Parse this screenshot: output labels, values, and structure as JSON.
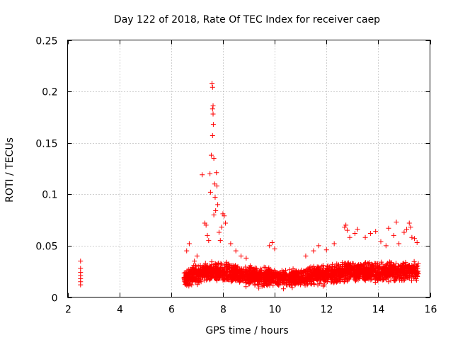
{
  "chart_data": {
    "type": "scatter",
    "title": "Day 122 of 2018, Rate Of TEC Index for receiver caep",
    "xlabel": "GPS time / hours",
    "ylabel": "ROTI / TECUs",
    "xlim": [
      2,
      16
    ],
    "ylim": [
      0,
      0.25
    ],
    "x_ticks": [
      2,
      4,
      6,
      8,
      10,
      12,
      14,
      16
    ],
    "y_ticks": [
      0,
      0.05,
      0.1,
      0.15,
      0.2,
      0.25
    ],
    "x_tick_labels": [
      "2",
      "4",
      "6",
      "8",
      "10",
      "12",
      "14",
      "16"
    ],
    "y_tick_labels": [
      "0",
      "0.05",
      "0.1",
      "0.15",
      "0.2",
      "0.25"
    ],
    "grid": true,
    "marker": "+",
    "color": "#ff0000",
    "series": [
      {
        "name": "ROTI",
        "points": [
          [
            2.5,
            0.012
          ],
          [
            2.5,
            0.015
          ],
          [
            2.5,
            0.018
          ],
          [
            2.5,
            0.021
          ],
          [
            2.5,
            0.024
          ],
          [
            2.5,
            0.028
          ],
          [
            2.5,
            0.035
          ],
          [
            6.6,
            0.045
          ],
          [
            6.7,
            0.052
          ],
          [
            6.9,
            0.035
          ],
          [
            7.0,
            0.04
          ],
          [
            7.2,
            0.119
          ],
          [
            7.3,
            0.072
          ],
          [
            7.35,
            0.07
          ],
          [
            7.4,
            0.06
          ],
          [
            7.45,
            0.055
          ],
          [
            7.5,
            0.12
          ],
          [
            7.52,
            0.102
          ],
          [
            7.55,
            0.138
          ],
          [
            7.58,
            0.208
          ],
          [
            7.6,
            0.204
          ],
          [
            7.62,
            0.186
          ],
          [
            7.6,
            0.183
          ],
          [
            7.62,
            0.178
          ],
          [
            7.63,
            0.168
          ],
          [
            7.6,
            0.157
          ],
          [
            7.65,
            0.135
          ],
          [
            7.68,
            0.11
          ],
          [
            7.7,
            0.097
          ],
          [
            7.72,
            0.084
          ],
          [
            7.75,
            0.121
          ],
          [
            7.77,
            0.108
          ],
          [
            7.8,
            0.09
          ],
          [
            7.65,
            0.08
          ],
          [
            7.85,
            0.063
          ],
          [
            7.9,
            0.055
          ],
          [
            7.95,
            0.068
          ],
          [
            8.0,
            0.081
          ],
          [
            8.05,
            0.079
          ],
          [
            8.1,
            0.072
          ],
          [
            8.3,
            0.052
          ],
          [
            8.5,
            0.045
          ],
          [
            8.7,
            0.04
          ],
          [
            8.9,
            0.038
          ],
          [
            9.8,
            0.05
          ],
          [
            9.9,
            0.053
          ],
          [
            10.0,
            0.047
          ],
          [
            11.2,
            0.04
          ],
          [
            11.5,
            0.045
          ],
          [
            11.7,
            0.05
          ],
          [
            12.0,
            0.046
          ],
          [
            12.3,
            0.052
          ],
          [
            12.7,
            0.068
          ],
          [
            12.75,
            0.07
          ],
          [
            12.8,
            0.065
          ],
          [
            12.9,
            0.058
          ],
          [
            13.1,
            0.062
          ],
          [
            13.2,
            0.066
          ],
          [
            13.5,
            0.058
          ],
          [
            13.7,
            0.062
          ],
          [
            13.9,
            0.064
          ],
          [
            14.1,
            0.054
          ],
          [
            14.3,
            0.05
          ],
          [
            14.4,
            0.067
          ],
          [
            14.6,
            0.06
          ],
          [
            14.7,
            0.073
          ],
          [
            14.8,
            0.052
          ],
          [
            15.0,
            0.063
          ],
          [
            15.1,
            0.066
          ],
          [
            15.2,
            0.072
          ],
          [
            15.25,
            0.068
          ],
          [
            15.3,
            0.058
          ],
          [
            15.4,
            0.057
          ],
          [
            15.5,
            0.053
          ]
        ],
        "dense_band": {
          "x_range": [
            6.5,
            15.55
          ],
          "y_floor": 0.006,
          "y_center_by_hour": [
            [
              6.5,
              0.018
            ],
            [
              7.0,
              0.022
            ],
            [
              7.5,
              0.025
            ],
            [
              8.0,
              0.024
            ],
            [
              8.5,
              0.022
            ],
            [
              9.0,
              0.021
            ],
            [
              9.5,
              0.02
            ],
            [
              10.0,
              0.019
            ],
            [
              10.5,
              0.018
            ],
            [
              11.0,
              0.019
            ],
            [
              11.5,
              0.021
            ],
            [
              12.0,
              0.022
            ],
            [
              12.5,
              0.024
            ],
            [
              13.0,
              0.025
            ],
            [
              13.5,
              0.025
            ],
            [
              14.0,
              0.024
            ],
            [
              14.5,
              0.025
            ],
            [
              15.0,
              0.026
            ],
            [
              15.55,
              0.024
            ]
          ],
          "y_spread": 0.012,
          "count": 2600
        }
      }
    ]
  }
}
